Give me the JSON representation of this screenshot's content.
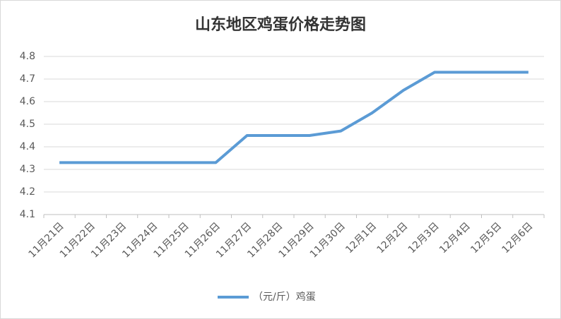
{
  "chart_data": {
    "type": "line",
    "title": "山东地区鸡蛋价格走势图",
    "categories": [
      "11月21日",
      "11月22日",
      "11月23日",
      "11月24日",
      "11月25日",
      "11月26日",
      "11月27日",
      "11月28日",
      "11月29日",
      "11月30日",
      "12月1日",
      "12月2日",
      "12月3日",
      "12月4日",
      "12月5日",
      "12月6日"
    ],
    "series": [
      {
        "name": "（元/斤）鸡蛋",
        "color": "#5b9bd5",
        "values": [
          4.33,
          4.33,
          4.33,
          4.33,
          4.33,
          4.33,
          4.45,
          4.45,
          4.45,
          4.47,
          4.55,
          4.65,
          4.73,
          4.73,
          4.73,
          4.73
        ]
      }
    ],
    "ylim": [
      4.1,
      4.8
    ],
    "yticks": [
      4.1,
      4.2,
      4.3,
      4.4,
      4.5,
      4.6,
      4.7,
      4.8
    ],
    "grid": true,
    "legend": "bottom"
  }
}
